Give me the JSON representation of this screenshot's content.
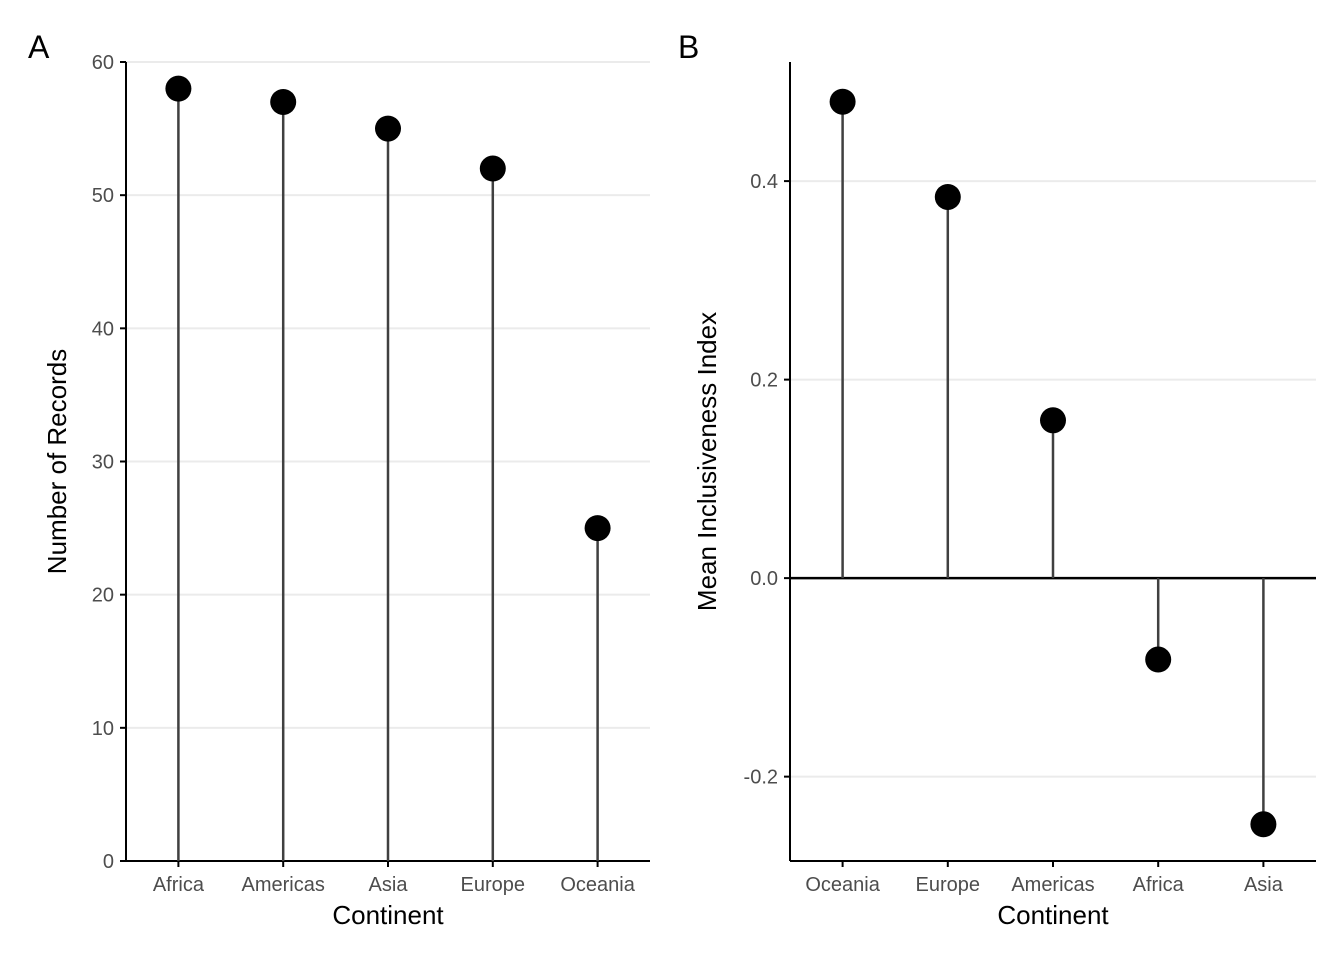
{
  "chart_data": [
    {
      "panel_tag": "A",
      "type": "lollipop",
      "xlabel": "Continent",
      "ylabel": "Number of Records",
      "categories": [
        "Africa",
        "Americas",
        "Asia",
        "Europe",
        "Oceania"
      ],
      "values": [
        58,
        57,
        55,
        52,
        25
      ],
      "ylim": [
        0,
        60
      ],
      "yticks": [
        0,
        10,
        20,
        30,
        40,
        50,
        60
      ],
      "ytick_labels": [
        "0",
        "10",
        "20",
        "30",
        "40",
        "50",
        "60"
      ],
      "grid": "horizontal",
      "zero_line": false
    },
    {
      "panel_tag": "B",
      "type": "lollipop",
      "xlabel": "Continent",
      "ylabel": "Mean Inclusiveness Index",
      "categories": [
        "Oceania",
        "Europe",
        "Americas",
        "Africa",
        "Asia"
      ],
      "values": [
        0.48,
        0.384,
        0.159,
        -0.082,
        -0.248
      ],
      "ylim": [
        -0.285,
        0.52
      ],
      "yticks": [
        -0.2,
        0.0,
        0.2,
        0.4
      ],
      "ytick_labels": [
        "-0.2",
        "0.0",
        "0.2",
        "0.4"
      ],
      "grid": "horizontal",
      "zero_line": true
    }
  ]
}
